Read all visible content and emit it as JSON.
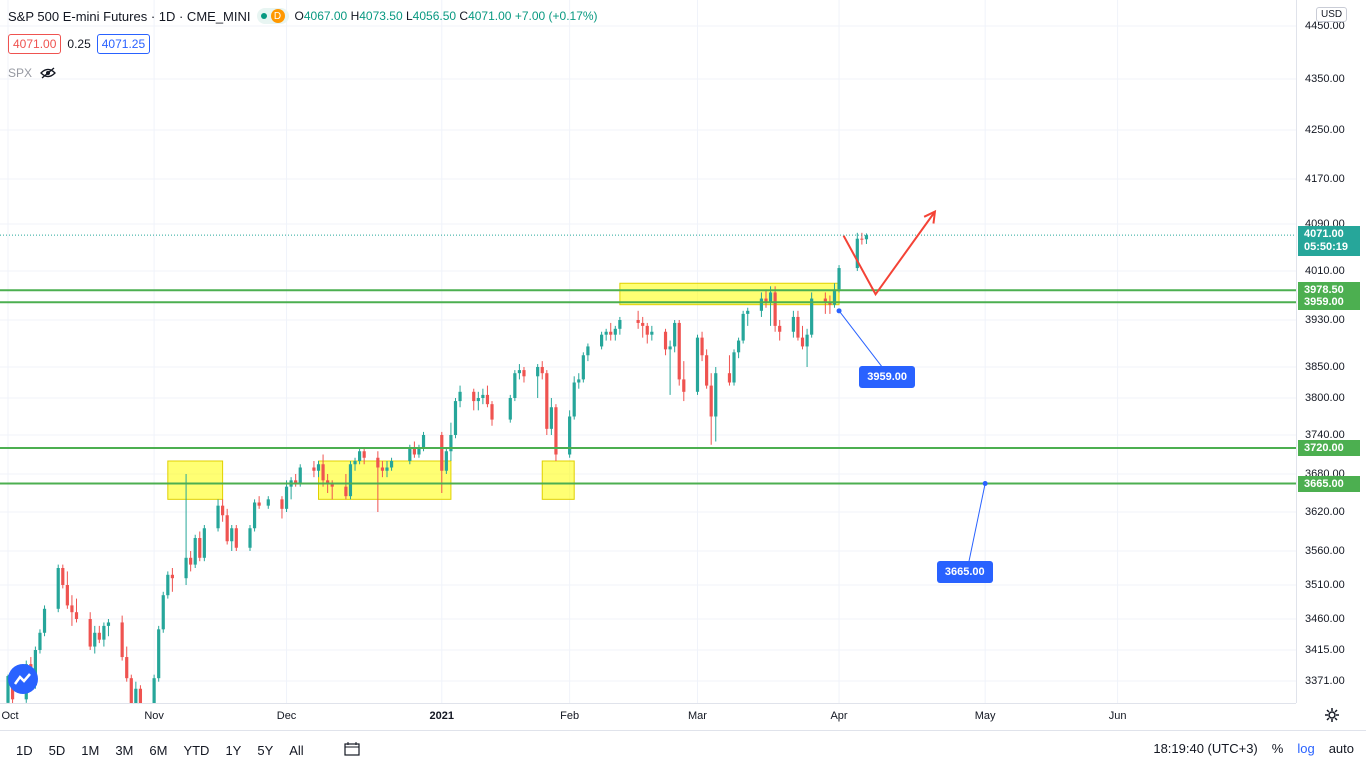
{
  "header": {
    "symbol": "S&P 500 E-mini Futures · 1D · CME_MINI",
    "status_letter": "D",
    "open_label": "O",
    "open": "4067.00",
    "high_label": "H",
    "high": "4073.50",
    "low_label": "L",
    "low": "4056.50",
    "close_label": "C",
    "close": "4071.00",
    "change": "+7.00 (+0.17%)"
  },
  "price_row": {
    "bid": "4071.00",
    "spread": "0.25",
    "ask": "4071.25"
  },
  "overlay": {
    "symbol": "SPX"
  },
  "currency": "USD",
  "colors": {
    "up": "#26a69a",
    "down": "#ef5350",
    "level": "#4caf50",
    "zone": "#ffff00",
    "callout": "#2962ff",
    "arrow": "#f44336"
  },
  "chart_data": {
    "type": "candlestick",
    "title": "S&P 500 E-mini Futures · 1D · CME_MINI",
    "ylim": [
      3340,
      4470
    ],
    "y_ticks": [
      4450,
      4350,
      4250,
      4170,
      4090,
      4010,
      3930,
      3850,
      3800,
      3740,
      3680,
      3620,
      3560,
      3510,
      3460,
      3415,
      3371
    ],
    "x_ticks": [
      {
        "label": "Oct",
        "date": "2020-10-01"
      },
      {
        "label": "Nov",
        "date": "2020-11-02"
      },
      {
        "label": "Dec",
        "date": "2020-12-01"
      },
      {
        "label": "2021",
        "date": "2021-01-04"
      },
      {
        "label": "Feb",
        "date": "2021-02-01"
      },
      {
        "label": "Mar",
        "date": "2021-03-01"
      },
      {
        "label": "Apr",
        "date": "2021-04-01"
      },
      {
        "label": "May",
        "date": "2021-05-03"
      },
      {
        "label": "Jun",
        "date": "2021-06-01"
      }
    ],
    "x_range": [
      "2020-10-01",
      "2021-06-30"
    ],
    "levels": [
      {
        "label": "3978.50",
        "value": 3978.5
      },
      {
        "label": "3959.00",
        "value": 3959.0
      },
      {
        "label": "3720.00",
        "value": 3720.0
      },
      {
        "label": "3665.00",
        "value": 3665.0
      }
    ],
    "last_price": {
      "label": "4071.00",
      "value": 4071.0,
      "countdown": "05:50:19"
    },
    "zones": [
      {
        "x0": "2020-11-05",
        "x1": "2020-11-17",
        "y0": 3640,
        "y1": 3700
      },
      {
        "x0": "2020-12-08",
        "x1": "2021-01-06",
        "y0": 3640,
        "y1": 3700
      },
      {
        "x0": "2021-01-26",
        "x1": "2021-02-02",
        "y0": 3640,
        "y1": 3700
      },
      {
        "x0": "2021-02-12",
        "x1": "2021-04-01",
        "y0": 3955,
        "y1": 3990
      }
    ],
    "callouts": [
      {
        "label": "3959.00",
        "from": [
          "2021-04-01",
          3945
        ],
        "to": [
          "2021-04-12",
          3835
        ]
      },
      {
        "label": "3665.00",
        "from": [
          "2021-05-03",
          3665
        ],
        "to": [
          "2021-04-29",
          3530
        ]
      }
    ],
    "projection": [
      [
        "2021-04-02",
        4070
      ],
      [
        "2021-04-09",
        3972
      ],
      [
        "2021-04-22",
        4112
      ]
    ],
    "candles": [
      [
        "2020-10-01",
        3340,
        3380,
        3320,
        3378
      ],
      [
        "2020-10-02",
        3375,
        3382,
        3330,
        3345
      ],
      [
        "2020-10-05",
        3345,
        3400,
        3340,
        3395
      ],
      [
        "2020-10-06",
        3395,
        3405,
        3360,
        3365
      ],
      [
        "2020-10-07",
        3365,
        3420,
        3360,
        3415
      ],
      [
        "2020-10-08",
        3415,
        3445,
        3410,
        3440
      ],
      [
        "2020-10-09",
        3440,
        3480,
        3435,
        3475
      ],
      [
        "2020-10-12",
        3475,
        3540,
        3470,
        3535
      ],
      [
        "2020-10-13",
        3535,
        3540,
        3505,
        3510
      ],
      [
        "2020-10-14",
        3510,
        3530,
        3475,
        3480
      ],
      [
        "2020-10-15",
        3480,
        3495,
        3450,
        3470
      ],
      [
        "2020-10-16",
        3470,
        3490,
        3455,
        3460
      ],
      [
        "2020-10-19",
        3460,
        3470,
        3415,
        3420
      ],
      [
        "2020-10-20",
        3420,
        3450,
        3410,
        3440
      ],
      [
        "2020-10-21",
        3440,
        3450,
        3425,
        3430
      ],
      [
        "2020-10-22",
        3430,
        3455,
        3420,
        3450
      ],
      [
        "2020-10-23",
        3450,
        3460,
        3435,
        3455
      ],
      [
        "2020-10-26",
        3455,
        3465,
        3400,
        3405
      ],
      [
        "2020-10-27",
        3405,
        3420,
        3370,
        3375
      ],
      [
        "2020-10-28",
        3375,
        3380,
        3320,
        3325
      ],
      [
        "2020-10-29",
        3325,
        3370,
        3320,
        3360
      ],
      [
        "2020-10-30",
        3360,
        3365,
        3305,
        3310
      ],
      [
        "2020-11-02",
        3310,
        3380,
        3305,
        3375
      ],
      [
        "2020-11-03",
        3375,
        3450,
        3370,
        3445
      ],
      [
        "2020-11-04",
        3445,
        3500,
        3440,
        3495
      ],
      [
        "2020-11-05",
        3495,
        3530,
        3490,
        3525
      ],
      [
        "2020-11-06",
        3525,
        3535,
        3500,
        3520
      ],
      [
        "2020-11-09",
        3520,
        3680,
        3510,
        3550
      ],
      [
        "2020-11-10",
        3550,
        3560,
        3530,
        3540
      ],
      [
        "2020-11-11",
        3540,
        3585,
        3535,
        3580
      ],
      [
        "2020-11-12",
        3580,
        3590,
        3545,
        3550
      ],
      [
        "2020-11-13",
        3550,
        3600,
        3545,
        3595
      ],
      [
        "2020-11-16",
        3595,
        3640,
        3590,
        3630
      ],
      [
        "2020-11-17",
        3630,
        3640,
        3605,
        3615
      ],
      [
        "2020-11-18",
        3615,
        3625,
        3570,
        3575
      ],
      [
        "2020-11-19",
        3575,
        3600,
        3560,
        3595
      ],
      [
        "2020-11-20",
        3595,
        3600,
        3560,
        3565
      ],
      [
        "2020-11-23",
        3565,
        3600,
        3560,
        3595
      ],
      [
        "2020-11-24",
        3595,
        3640,
        3590,
        3635
      ],
      [
        "2020-11-25",
        3635,
        3645,
        3625,
        3630
      ],
      [
        "2020-11-27",
        3630,
        3645,
        3625,
        3640
      ],
      [
        "2020-11-30",
        3640,
        3645,
        3610,
        3625
      ],
      [
        "2020-12-01",
        3625,
        3670,
        3620,
        3660
      ],
      [
        "2020-12-02",
        3660,
        3675,
        3640,
        3670
      ],
      [
        "2020-12-03",
        3670,
        3680,
        3660,
        3665
      ],
      [
        "2020-12-04",
        3665,
        3695,
        3660,
        3690
      ],
      [
        "2020-12-07",
        3690,
        3700,
        3675,
        3685
      ],
      [
        "2020-12-08",
        3685,
        3700,
        3675,
        3695
      ],
      [
        "2020-12-09",
        3695,
        3710,
        3660,
        3670
      ],
      [
        "2020-12-10",
        3670,
        3680,
        3650,
        3665
      ],
      [
        "2020-12-11",
        3665,
        3670,
        3640,
        3660
      ],
      [
        "2020-12-14",
        3660,
        3680,
        3640,
        3645
      ],
      [
        "2020-12-15",
        3645,
        3700,
        3640,
        3695
      ],
      [
        "2020-12-16",
        3695,
        3705,
        3685,
        3700
      ],
      [
        "2020-12-17",
        3700,
        3720,
        3695,
        3715
      ],
      [
        "2020-12-18",
        3715,
        3720,
        3695,
        3705
      ],
      [
        "2020-12-21",
        3705,
        3715,
        3620,
        3690
      ],
      [
        "2020-12-22",
        3690,
        3700,
        3675,
        3685
      ],
      [
        "2020-12-23",
        3685,
        3700,
        3675,
        3690
      ],
      [
        "2020-12-24",
        3690,
        3705,
        3685,
        3700
      ],
      [
        "2020-12-28",
        3700,
        3725,
        3695,
        3720
      ],
      [
        "2020-12-29",
        3720,
        3730,
        3705,
        3710
      ],
      [
        "2020-12-30",
        3710,
        3725,
        3705,
        3720
      ],
      [
        "2020-12-31",
        3720,
        3745,
        3715,
        3740
      ],
      [
        "2021-01-04",
        3740,
        3745,
        3650,
        3685
      ],
      [
        "2021-01-05",
        3685,
        3720,
        3680,
        3715
      ],
      [
        "2021-01-06",
        3715,
        3760,
        3700,
        3740
      ],
      [
        "2021-01-07",
        3740,
        3800,
        3735,
        3795
      ],
      [
        "2021-01-08",
        3795,
        3820,
        3785,
        3810
      ],
      [
        "2021-01-11",
        3810,
        3815,
        3780,
        3795
      ],
      [
        "2021-01-12",
        3795,
        3810,
        3780,
        3800
      ],
      [
        "2021-01-13",
        3800,
        3815,
        3790,
        3805
      ],
      [
        "2021-01-14",
        3805,
        3820,
        3785,
        3790
      ],
      [
        "2021-01-15",
        3790,
        3795,
        3755,
        3765
      ],
      [
        "2021-01-19",
        3765,
        3805,
        3760,
        3800
      ],
      [
        "2021-01-20",
        3800,
        3845,
        3795,
        3840
      ],
      [
        "2021-01-21",
        3840,
        3855,
        3830,
        3845
      ],
      [
        "2021-01-22",
        3845,
        3850,
        3825,
        3835
      ],
      [
        "2021-01-25",
        3835,
        3855,
        3800,
        3850
      ],
      [
        "2021-01-26",
        3850,
        3860,
        3830,
        3840
      ],
      [
        "2021-01-27",
        3840,
        3845,
        3740,
        3750
      ],
      [
        "2021-01-28",
        3750,
        3800,
        3740,
        3785
      ],
      [
        "2021-01-29",
        3785,
        3790,
        3700,
        3710
      ],
      [
        "2021-02-01",
        3710,
        3780,
        3705,
        3770
      ],
      [
        "2021-02-02",
        3770,
        3835,
        3765,
        3825
      ],
      [
        "2021-02-03",
        3825,
        3840,
        3815,
        3830
      ],
      [
        "2021-02-04",
        3830,
        3875,
        3825,
        3870
      ],
      [
        "2021-02-05",
        3870,
        3890,
        3860,
        3885
      ],
      [
        "2021-02-08",
        3885,
        3910,
        3880,
        3905
      ],
      [
        "2021-02-09",
        3905,
        3915,
        3895,
        3910
      ],
      [
        "2021-02-10",
        3910,
        3925,
        3895,
        3905
      ],
      [
        "2021-02-11",
        3905,
        3920,
        3895,
        3915
      ],
      [
        "2021-02-12",
        3915,
        3935,
        3905,
        3930
      ],
      [
        "2021-02-16",
        3930,
        3945,
        3915,
        3925
      ],
      [
        "2021-02-17",
        3925,
        3935,
        3900,
        3920
      ],
      [
        "2021-02-18",
        3920,
        3925,
        3890,
        3905
      ],
      [
        "2021-02-19",
        3905,
        3920,
        3895,
        3910
      ],
      [
        "2021-02-22",
        3910,
        3915,
        3870,
        3880
      ],
      [
        "2021-02-23",
        3880,
        3895,
        3805,
        3885
      ],
      [
        "2021-02-24",
        3885,
        3930,
        3875,
        3925
      ],
      [
        "2021-02-25",
        3925,
        3930,
        3820,
        3830
      ],
      [
        "2021-02-26",
        3830,
        3860,
        3795,
        3810
      ],
      [
        "2021-03-01",
        3810,
        3905,
        3805,
        3900
      ],
      [
        "2021-03-02",
        3900,
        3910,
        3860,
        3870
      ],
      [
        "2021-03-03",
        3870,
        3880,
        3815,
        3820
      ],
      [
        "2021-03-04",
        3820,
        3840,
        3725,
        3770
      ],
      [
        "2021-03-05",
        3770,
        3850,
        3730,
        3840
      ],
      [
        "2021-03-08",
        3840,
        3870,
        3820,
        3825
      ],
      [
        "2021-03-09",
        3825,
        3880,
        3820,
        3875
      ],
      [
        "2021-03-10",
        3875,
        3900,
        3865,
        3895
      ],
      [
        "2021-03-11",
        3895,
        3945,
        3890,
        3940
      ],
      [
        "2021-03-12",
        3940,
        3950,
        3920,
        3945
      ],
      [
        "2021-03-15",
        3945,
        3975,
        3935,
        3965
      ],
      [
        "2021-03-16",
        3965,
        3980,
        3950,
        3960
      ],
      [
        "2021-03-17",
        3960,
        3985,
        3920,
        3975
      ],
      [
        "2021-03-18",
        3975,
        3985,
        3910,
        3920
      ],
      [
        "2021-03-19",
        3920,
        3930,
        3895,
        3910
      ],
      [
        "2021-03-22",
        3910,
        3945,
        3900,
        3935
      ],
      [
        "2021-03-23",
        3935,
        3945,
        3895,
        3900
      ],
      [
        "2021-03-24",
        3900,
        3920,
        3880,
        3885
      ],
      [
        "2021-03-25",
        3885,
        3915,
        3850,
        3905
      ],
      [
        "2021-03-26",
        3905,
        3975,
        3900,
        3965
      ],
      [
        "2021-03-29",
        3965,
        3975,
        3940,
        3960
      ],
      [
        "2021-03-30",
        3960,
        3970,
        3940,
        3955
      ],
      [
        "2021-03-31",
        3955,
        3990,
        3950,
        3980
      ],
      [
        "2021-04-01",
        3980,
        4020,
        3975,
        4015
      ],
      [
        "2021-04-05",
        4015,
        4075,
        4010,
        4065
      ],
      [
        "2021-04-06",
        4065,
        4075,
        4055,
        4064
      ],
      [
        "2021-04-07",
        4064,
        4074,
        4056,
        4071
      ]
    ]
  },
  "toolbar": {
    "timeframes": [
      "1D",
      "5D",
      "1M",
      "3M",
      "6M",
      "YTD",
      "1Y",
      "5Y",
      "All"
    ],
    "clock": "18:19:40 (UTC+3)",
    "percent": "%",
    "log": "log",
    "auto": "auto"
  }
}
